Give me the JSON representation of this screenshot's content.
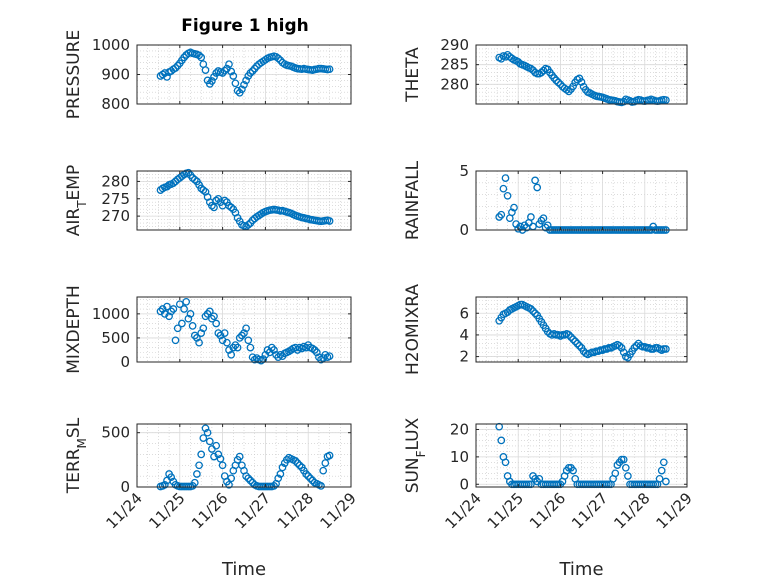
{
  "figure": {
    "title": "Figure 1 high"
  },
  "colors": {
    "marker": "#0072BD",
    "axis": "#262626"
  },
  "chart_data": [
    {
      "type": "scatter",
      "title": "Figure 1 high",
      "ylabel": "PRESSURE",
      "xlabel": "",
      "ylim": [
        800,
        1000
      ],
      "yticks": [
        800,
        900,
        1000
      ],
      "x": [
        0.55,
        0.6,
        0.65,
        0.7,
        0.75,
        0.8,
        0.85,
        0.9,
        0.95,
        1.0,
        1.05,
        1.1,
        1.15,
        1.2,
        1.25,
        1.3,
        1.35,
        1.4,
        1.45,
        1.5,
        1.55,
        1.6,
        1.65,
        1.7,
        1.75,
        1.8,
        1.85,
        1.9,
        1.95,
        2.0,
        2.05,
        2.1,
        2.15,
        2.2,
        2.25,
        2.3,
        2.35,
        2.4,
        2.45,
        2.5,
        2.55,
        2.6,
        2.65,
        2.7,
        2.75,
        2.8,
        2.85,
        2.9,
        2.95,
        3.0,
        3.05,
        3.1,
        3.15,
        3.2,
        3.25,
        3.3,
        3.35,
        3.4,
        3.45,
        3.5,
        3.55,
        3.6,
        3.65,
        3.7,
        3.75,
        3.8,
        3.85,
        3.9,
        3.95,
        4.0,
        4.05,
        4.1,
        4.15,
        4.2,
        4.25,
        4.3,
        4.35,
        4.4,
        4.45,
        4.5
      ],
      "y": [
        895,
        900,
        905,
        892,
        908,
        912,
        918,
        922,
        930,
        938,
        948,
        958,
        966,
        972,
        975,
        972,
        970,
        968,
        965,
        958,
        935,
        915,
        880,
        868,
        878,
        892,
        905,
        912,
        908,
        905,
        913,
        920,
        935,
        910,
        895,
        870,
        845,
        838,
        850,
        865,
        880,
        895,
        905,
        912,
        920,
        928,
        935,
        940,
        945,
        950,
        955,
        958,
        960,
        962,
        960,
        955,
        948,
        940,
        935,
        932,
        930,
        928,
        925,
        922,
        920,
        919,
        918,
        920,
        918,
        917,
        916,
        915,
        917,
        918,
        920,
        920,
        919,
        918,
        917,
        918
      ]
    },
    {
      "type": "scatter",
      "title": "",
      "ylabel": "THETA",
      "xlabel": "",
      "ylim": [
        275,
        290
      ],
      "yticks": [
        280,
        285,
        290
      ],
      "x": [
        0.55,
        0.6,
        0.65,
        0.7,
        0.75,
        0.8,
        0.85,
        0.9,
        0.95,
        1.0,
        1.05,
        1.1,
        1.15,
        1.2,
        1.25,
        1.3,
        1.35,
        1.4,
        1.45,
        1.5,
        1.55,
        1.6,
        1.65,
        1.7,
        1.75,
        1.8,
        1.85,
        1.9,
        1.95,
        2.0,
        2.05,
        2.1,
        2.15,
        2.2,
        2.25,
        2.3,
        2.35,
        2.4,
        2.45,
        2.5,
        2.55,
        2.6,
        2.65,
        2.7,
        2.75,
        2.8,
        2.85,
        2.9,
        2.95,
        3.0,
        3.05,
        3.1,
        3.15,
        3.2,
        3.25,
        3.3,
        3.35,
        3.4,
        3.45,
        3.5,
        3.55,
        3.6,
        3.65,
        3.7,
        3.75,
        3.8,
        3.85,
        3.9,
        3.95,
        4.0,
        4.05,
        4.1,
        4.15,
        4.2,
        4.25,
        4.3,
        4.35,
        4.4,
        4.45,
        4.5
      ],
      "y": [
        286.8,
        286.5,
        287.2,
        287.0,
        287.5,
        287.0,
        286.6,
        286.2,
        286.0,
        285.7,
        285.2,
        285.0,
        284.8,
        284.5,
        284.2,
        284.0,
        283.6,
        283.0,
        282.7,
        282.7,
        283.0,
        283.5,
        284.0,
        283.8,
        283.0,
        282.3,
        281.6,
        281.0,
        280.5,
        280.0,
        279.4,
        279.0,
        278.6,
        278.2,
        278.8,
        279.5,
        280.5,
        281.2,
        281.5,
        280.6,
        279.4,
        278.6,
        278.0,
        277.8,
        277.5,
        277.2,
        277.0,
        276.9,
        276.8,
        276.7,
        276.5,
        276.3,
        276.1,
        276.0,
        275.9,
        275.8,
        275.6,
        275.5,
        275.4,
        275.6,
        276.2,
        276.0,
        275.8,
        275.5,
        275.6,
        275.9,
        276.1,
        276.0,
        275.8,
        275.7,
        275.9,
        276.0,
        276.2,
        276.0,
        275.8,
        275.7,
        275.8,
        276.0,
        276.1,
        276.0
      ]
    },
    {
      "type": "scatter",
      "title": "",
      "ylabel": "AIR_TEMP",
      "xlabel": "",
      "ylim": [
        266,
        283
      ],
      "yticks": [
        270,
        275,
        280
      ],
      "x": [
        0.55,
        0.6,
        0.65,
        0.7,
        0.75,
        0.8,
        0.85,
        0.9,
        0.95,
        1.0,
        1.05,
        1.1,
        1.15,
        1.2,
        1.25,
        1.3,
        1.35,
        1.4,
        1.45,
        1.5,
        1.55,
        1.6,
        1.65,
        1.7,
        1.75,
        1.8,
        1.85,
        1.9,
        1.95,
        2.0,
        2.05,
        2.1,
        2.15,
        2.2,
        2.25,
        2.3,
        2.35,
        2.4,
        2.45,
        2.5,
        2.55,
        2.6,
        2.65,
        2.7,
        2.75,
        2.8,
        2.85,
        2.9,
        2.95,
        3.0,
        3.05,
        3.1,
        3.15,
        3.2,
        3.25,
        3.3,
        3.35,
        3.4,
        3.45,
        3.5,
        3.55,
        3.6,
        3.65,
        3.7,
        3.75,
        3.8,
        3.85,
        3.9,
        3.95,
        4.0,
        4.05,
        4.1,
        4.15,
        4.2,
        4.25,
        4.3,
        4.35,
        4.4,
        4.45,
        4.5
      ],
      "y": [
        277.5,
        278.0,
        278.3,
        278.5,
        279.0,
        279.2,
        279.5,
        280.0,
        280.6,
        281.0,
        281.5,
        282.0,
        282.3,
        282.5,
        281.8,
        281.0,
        280.5,
        280.0,
        279.0,
        278.0,
        277.5,
        277.0,
        275.5,
        274.0,
        273.0,
        272.5,
        274.5,
        275.0,
        274.0,
        273.0,
        274.5,
        274.0,
        273.0,
        272.5,
        272.0,
        271.0,
        269.5,
        268.5,
        267.5,
        267.2,
        267.0,
        267.5,
        268.0,
        268.8,
        269.3,
        269.8,
        270.2,
        270.6,
        271.0,
        271.3,
        271.5,
        271.7,
        271.8,
        271.9,
        271.8,
        271.7,
        271.5,
        271.6,
        271.4,
        271.2,
        271.0,
        270.8,
        270.5,
        270.2,
        270.0,
        269.8,
        269.6,
        269.5,
        269.3,
        269.2,
        269.0,
        268.9,
        268.8,
        268.7,
        268.6,
        268.5,
        268.6,
        268.7,
        268.8,
        268.6
      ]
    },
    {
      "type": "scatter",
      "title": "",
      "ylabel": "RAINFALL",
      "xlabel": "",
      "ylim": [
        0,
        5
      ],
      "yticks": [
        0,
        5
      ],
      "x": [
        0.55,
        0.6,
        0.65,
        0.7,
        0.75,
        0.8,
        0.85,
        0.9,
        0.95,
        1.0,
        1.05,
        1.1,
        1.15,
        1.2,
        1.25,
        1.3,
        1.35,
        1.4,
        1.45,
        1.5,
        1.55,
        1.6,
        1.65,
        1.7,
        1.75,
        1.8,
        1.85,
        1.9,
        1.95,
        2.0,
        2.05,
        2.1,
        2.15,
        2.2,
        2.25,
        2.3,
        2.35,
        2.4,
        2.45,
        2.5,
        2.55,
        2.6,
        2.65,
        2.7,
        2.75,
        2.8,
        2.85,
        2.9,
        2.95,
        3.0,
        3.05,
        3.1,
        3.15,
        3.2,
        3.25,
        3.3,
        3.35,
        3.4,
        3.45,
        3.5,
        3.55,
        3.6,
        3.65,
        3.7,
        3.75,
        3.8,
        3.85,
        3.9,
        3.95,
        4.0,
        4.05,
        4.1,
        4.15,
        4.2,
        4.25,
        4.3,
        4.35,
        4.4,
        4.45,
        4.5
      ],
      "y": [
        1.1,
        1.3,
        3.5,
        4.4,
        2.9,
        1.0,
        1.5,
        1.9,
        0.5,
        0.1,
        0.3,
        0.0,
        0.4,
        0.2,
        0.6,
        1.1,
        0.3,
        4.2,
        3.6,
        0.5,
        0.8,
        1.0,
        0.2,
        0.4,
        0.0,
        0.0,
        0.0,
        0.0,
        0.0,
        0.0,
        0.0,
        0.0,
        0.0,
        0.0,
        0.0,
        0.0,
        0.0,
        0.0,
        0.0,
        0.0,
        0.0,
        0.0,
        0.0,
        0.0,
        0.0,
        0.0,
        0.0,
        0.0,
        0.0,
        0.0,
        0.0,
        0.0,
        0.0,
        0.0,
        0.0,
        0.0,
        0.0,
        0.0,
        0.0,
        0.0,
        0.0,
        0.0,
        0.0,
        0.0,
        0.0,
        0.0,
        0.0,
        0.0,
        0.0,
        0.0,
        0.0,
        0.0,
        0.0,
        0.3,
        0.0,
        0.0,
        0.0,
        0.0,
        0.0,
        0.0
      ]
    },
    {
      "type": "scatter",
      "title": "",
      "ylabel": "MIXDEPTH",
      "xlabel": "",
      "ylim": [
        0,
        1350
      ],
      "yticks": [
        0,
        500,
        1000
      ],
      "x": [
        0.55,
        0.6,
        0.65,
        0.7,
        0.75,
        0.8,
        0.85,
        0.9,
        0.95,
        1.0,
        1.05,
        1.1,
        1.15,
        1.2,
        1.25,
        1.3,
        1.35,
        1.4,
        1.45,
        1.5,
        1.55,
        1.6,
        1.65,
        1.7,
        1.75,
        1.8,
        1.85,
        1.9,
        1.95,
        2.0,
        2.05,
        2.1,
        2.15,
        2.2,
        2.25,
        2.3,
        2.35,
        2.4,
        2.45,
        2.5,
        2.55,
        2.6,
        2.65,
        2.7,
        2.75,
        2.8,
        2.85,
        2.9,
        2.95,
        3.0,
        3.05,
        3.1,
        3.15,
        3.2,
        3.25,
        3.3,
        3.35,
        3.4,
        3.45,
        3.5,
        3.55,
        3.6,
        3.65,
        3.7,
        3.75,
        3.8,
        3.85,
        3.9,
        3.95,
        4.0,
        4.05,
        4.1,
        4.15,
        4.2,
        4.25,
        4.3,
        4.35,
        4.4,
        4.45,
        4.5
      ],
      "y": [
        1050,
        1100,
        1000,
        1150,
        950,
        1050,
        1100,
        450,
        700,
        1200,
        800,
        1100,
        1250,
        900,
        1000,
        750,
        550,
        500,
        400,
        600,
        700,
        950,
        1000,
        1050,
        900,
        950,
        800,
        600,
        550,
        450,
        600,
        400,
        250,
        150,
        300,
        350,
        300,
        500,
        550,
        600,
        700,
        450,
        300,
        100,
        50,
        80,
        50,
        30,
        60,
        150,
        250,
        200,
        300,
        250,
        150,
        100,
        150,
        120,
        180,
        200,
        220,
        250,
        280,
        300,
        250,
        300,
        280,
        320,
        300,
        350,
        300,
        280,
        250,
        200,
        100,
        50,
        80,
        150,
        100,
        120
      ]
    },
    {
      "type": "scatter",
      "title": "",
      "ylabel": "H2OMIXRA",
      "xlabel": "",
      "ylim": [
        1.5,
        7.5
      ],
      "yticks": [
        2,
        4,
        6
      ],
      "x": [
        0.55,
        0.6,
        0.65,
        0.7,
        0.75,
        0.8,
        0.85,
        0.9,
        0.95,
        1.0,
        1.05,
        1.1,
        1.15,
        1.2,
        1.25,
        1.3,
        1.35,
        1.4,
        1.45,
        1.5,
        1.55,
        1.6,
        1.65,
        1.7,
        1.75,
        1.8,
        1.85,
        1.9,
        1.95,
        2.0,
        2.05,
        2.1,
        2.15,
        2.2,
        2.25,
        2.3,
        2.35,
        2.4,
        2.45,
        2.5,
        2.55,
        2.6,
        2.65,
        2.7,
        2.75,
        2.8,
        2.85,
        2.9,
        2.95,
        3.0,
        3.05,
        3.1,
        3.15,
        3.2,
        3.25,
        3.3,
        3.35,
        3.4,
        3.45,
        3.5,
        3.55,
        3.6,
        3.65,
        3.7,
        3.75,
        3.8,
        3.85,
        3.9,
        3.95,
        4.0,
        4.05,
        4.1,
        4.15,
        4.2,
        4.25,
        4.3,
        4.35,
        4.4,
        4.45,
        4.5
      ],
      "y": [
        5.3,
        5.6,
        5.9,
        6.0,
        6.1,
        6.3,
        6.4,
        6.5,
        6.6,
        6.7,
        6.8,
        6.8,
        6.7,
        6.6,
        6.5,
        6.4,
        6.2,
        6.0,
        5.8,
        5.5,
        5.2,
        4.9,
        4.6,
        4.3,
        4.1,
        4.0,
        4.1,
        4.0,
        4.0,
        3.9,
        4.0,
        4.0,
        4.1,
        4.0,
        3.8,
        3.6,
        3.4,
        3.2,
        3.0,
        2.8,
        2.5,
        2.3,
        2.2,
        2.3,
        2.4,
        2.4,
        2.5,
        2.5,
        2.6,
        2.6,
        2.7,
        2.7,
        2.8,
        2.8,
        2.9,
        3.0,
        3.1,
        3.0,
        2.8,
        2.4,
        2.0,
        1.9,
        2.2,
        2.5,
        2.8,
        3.0,
        3.2,
        3.0,
        2.9,
        2.9,
        2.8,
        2.8,
        2.7,
        2.7,
        2.8,
        2.8,
        2.7,
        2.6,
        2.7,
        2.7
      ]
    },
    {
      "type": "scatter",
      "title": "",
      "ylabel": "TERR_MSL",
      "xlabel": "Time",
      "ylim": [
        0,
        580
      ],
      "yticks": [
        0,
        500
      ],
      "xticklabels": [
        "11/24",
        "11/25",
        "11/26",
        "11/27",
        "11/28",
        "11/29"
      ],
      "x": [
        0.55,
        0.6,
        0.65,
        0.7,
        0.75,
        0.8,
        0.85,
        0.9,
        0.95,
        1.0,
        1.05,
        1.1,
        1.15,
        1.2,
        1.25,
        1.3,
        1.35,
        1.4,
        1.45,
        1.5,
        1.55,
        1.6,
        1.65,
        1.7,
        1.75,
        1.8,
        1.85,
        1.9,
        1.95,
        2.0,
        2.05,
        2.1,
        2.15,
        2.2,
        2.25,
        2.3,
        2.35,
        2.4,
        2.45,
        2.5,
        2.55,
        2.6,
        2.65,
        2.7,
        2.75,
        2.8,
        2.85,
        2.9,
        2.95,
        3.0,
        3.05,
        3.1,
        3.15,
        3.2,
        3.25,
        3.3,
        3.35,
        3.4,
        3.45,
        3.5,
        3.55,
        3.6,
        3.65,
        3.7,
        3.75,
        3.8,
        3.85,
        3.9,
        3.95,
        4.0,
        4.05,
        4.1,
        4.15,
        4.2,
        4.25,
        4.3,
        4.35,
        4.4,
        4.45,
        4.5
      ],
      "y": [
        5,
        10,
        20,
        60,
        120,
        90,
        50,
        20,
        10,
        5,
        5,
        5,
        5,
        5,
        5,
        10,
        40,
        120,
        200,
        300,
        450,
        540,
        500,
        420,
        350,
        280,
        380,
        300,
        260,
        200,
        100,
        50,
        20,
        80,
        150,
        200,
        250,
        280,
        200,
        150,
        100,
        80,
        60,
        40,
        20,
        10,
        5,
        5,
        5,
        5,
        5,
        5,
        5,
        10,
        30,
        80,
        120,
        180,
        220,
        250,
        270,
        260,
        250,
        240,
        220,
        200,
        180,
        150,
        120,
        100,
        80,
        60,
        40,
        30,
        20,
        10,
        150,
        220,
        280,
        290
      ]
    },
    {
      "type": "scatter",
      "title": "",
      "ylabel": "SUN_FLUX",
      "xlabel": "Time",
      "ylim": [
        -1,
        22
      ],
      "yticks": [
        0,
        10,
        20
      ],
      "xticklabels": [
        "11/24",
        "11/25",
        "11/26",
        "11/27",
        "11/28",
        "11/29"
      ],
      "x": [
        0.55,
        0.6,
        0.65,
        0.7,
        0.75,
        0.8,
        0.85,
        0.9,
        0.95,
        1.0,
        1.05,
        1.1,
        1.15,
        1.2,
        1.25,
        1.3,
        1.35,
        1.4,
        1.45,
        1.5,
        1.55,
        1.6,
        1.65,
        1.7,
        1.75,
        1.8,
        1.85,
        1.9,
        1.95,
        2.0,
        2.05,
        2.1,
        2.15,
        2.2,
        2.25,
        2.3,
        2.35,
        2.4,
        2.45,
        2.5,
        2.55,
        2.6,
        2.65,
        2.7,
        2.75,
        2.8,
        2.85,
        2.9,
        2.95,
        3.0,
        3.05,
        3.1,
        3.15,
        3.2,
        3.25,
        3.3,
        3.35,
        3.4,
        3.45,
        3.5,
        3.55,
        3.6,
        3.65,
        3.7,
        3.75,
        3.8,
        3.85,
        3.9,
        3.95,
        4.0,
        4.05,
        4.1,
        4.15,
        4.2,
        4.25,
        4.3,
        4.35,
        4.4,
        4.45,
        4.5
      ],
      "y": [
        21,
        16,
        10,
        8,
        3,
        1,
        0,
        0,
        0,
        0,
        0,
        0,
        0,
        0,
        0,
        0,
        3,
        2,
        1,
        2,
        0,
        0,
        0,
        0,
        0,
        0,
        0,
        0,
        0,
        0,
        1,
        3,
        5,
        6,
        6,
        5,
        2,
        0,
        0,
        0,
        0,
        0,
        0,
        0,
        0,
        0,
        0,
        0,
        0,
        0,
        0,
        0,
        0,
        0,
        2,
        4,
        7,
        8,
        9,
        9,
        6,
        3,
        0,
        0,
        0,
        0,
        0,
        0,
        0,
        0,
        0,
        0,
        0,
        0,
        0,
        0,
        2,
        5,
        8,
        1
      ]
    }
  ]
}
